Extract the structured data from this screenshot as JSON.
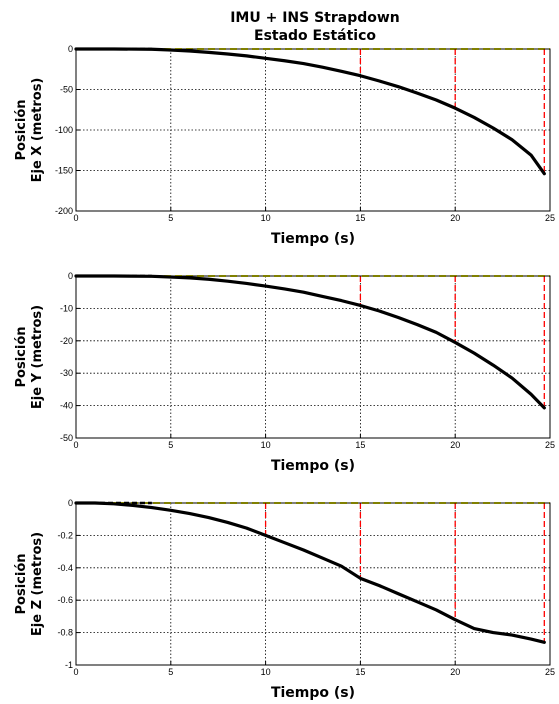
{
  "figure": {
    "title_line1": "IMU + INS Strapdown",
    "title_line2": "Estado Estático"
  },
  "colors": {
    "axes": "#000000",
    "grid": "#000000",
    "position": "#000000",
    "threshold": "#ffff00",
    "event": "#ff0000"
  },
  "chart_data": [
    {
      "type": "line",
      "xlabel": "Tiempo (s)",
      "ylabel_line1": "Posición",
      "ylabel_line2": "Eje X (metros)",
      "xlim": [
        0,
        25
      ],
      "ylim": [
        -200,
        0
      ],
      "xticks": [
        0,
        5,
        10,
        15,
        20,
        25
      ],
      "yticks": [
        0,
        -50,
        -100,
        -150,
        -200
      ],
      "grid": true,
      "position_series": {
        "x": [
          0,
          2,
          4,
          5,
          6,
          7,
          8,
          9,
          10,
          11,
          12,
          13,
          14,
          15,
          16,
          17,
          18,
          19,
          20,
          21,
          22,
          23,
          24,
          24.7
        ],
        "y": [
          0,
          0,
          -0.3,
          -1.2,
          -2.5,
          -4.2,
          -6.2,
          -8.5,
          -11.5,
          -14.5,
          -18,
          -22.5,
          -27.5,
          -33,
          -39.5,
          -46.5,
          -54.5,
          -63,
          -73,
          -84.5,
          -97.5,
          -112,
          -131,
          -154
        ]
      },
      "threshold_series": {
        "x": [
          0,
          25
        ],
        "y": [
          0,
          0
        ]
      },
      "event_markers": [
        {
          "x": 15,
          "y": -33
        },
        {
          "x": 20,
          "y": -73
        },
        {
          "x": 24.7,
          "y": -154
        }
      ]
    },
    {
      "type": "line",
      "xlabel": "Tiempo (s)",
      "ylabel_line1": "Posición",
      "ylabel_line2": "Eje Y (metros)",
      "xlim": [
        0,
        25
      ],
      "ylim": [
        -50,
        0
      ],
      "xticks": [
        0,
        5,
        10,
        15,
        20,
        25
      ],
      "yticks": [
        0,
        -10,
        -20,
        -30,
        -40,
        -50
      ],
      "grid": true,
      "position_series": {
        "x": [
          0,
          2,
          4,
          5,
          6,
          7,
          8,
          9,
          10,
          11,
          12,
          13,
          14,
          15,
          16,
          17,
          18,
          19,
          20,
          21,
          22,
          23,
          24,
          24.7
        ],
        "y": [
          0,
          0,
          -0.1,
          -0.3,
          -0.6,
          -1.0,
          -1.6,
          -2.3,
          -3.1,
          -4.0,
          -5.0,
          -6.3,
          -7.6,
          -9.1,
          -10.8,
          -12.8,
          -15,
          -17.4,
          -20.5,
          -23.8,
          -27.5,
          -31.5,
          -36.5,
          -40.7
        ]
      },
      "threshold_series": {
        "x": [
          0,
          25
        ],
        "y": [
          0,
          0
        ]
      },
      "event_markers": [
        {
          "x": 15,
          "y": -9.1
        },
        {
          "x": 20,
          "y": -20.5
        },
        {
          "x": 24.7,
          "y": -40.7
        }
      ]
    },
    {
      "type": "line",
      "xlabel": "Tiempo (s)",
      "ylabel_line1": "Posición",
      "ylabel_line2": "Eje Z (metros)",
      "xlim": [
        0,
        25
      ],
      "ylim": [
        -1,
        0
      ],
      "xticks": [
        0,
        5,
        10,
        15,
        20,
        25
      ],
      "yticks": [
        0,
        -0.2,
        -0.4,
        -0.6,
        -0.8,
        -1
      ],
      "grid": true,
      "position_series": {
        "x": [
          0,
          1,
          2,
          3,
          4,
          5,
          6,
          7,
          8,
          9,
          10,
          11,
          12,
          13,
          14,
          15,
          16,
          17,
          18,
          19,
          20,
          21,
          22,
          23,
          24,
          24.7
        ],
        "y": [
          0,
          0,
          -0.005,
          -0.015,
          -0.028,
          -0.045,
          -0.065,
          -0.09,
          -0.12,
          -0.155,
          -0.2,
          -0.245,
          -0.29,
          -0.34,
          -0.39,
          -0.465,
          -0.51,
          -0.56,
          -0.61,
          -0.66,
          -0.72,
          -0.775,
          -0.8,
          -0.815,
          -0.84,
          -0.86
        ]
      },
      "threshold_series": {
        "x": [
          0,
          25
        ],
        "y": [
          0,
          0
        ]
      },
      "event_markers": [
        {
          "x": 10,
          "y": -0.2
        },
        {
          "x": 15,
          "y": -0.465
        },
        {
          "x": 20,
          "y": -0.72
        },
        {
          "x": 24.7,
          "y": -0.86
        }
      ]
    }
  ]
}
